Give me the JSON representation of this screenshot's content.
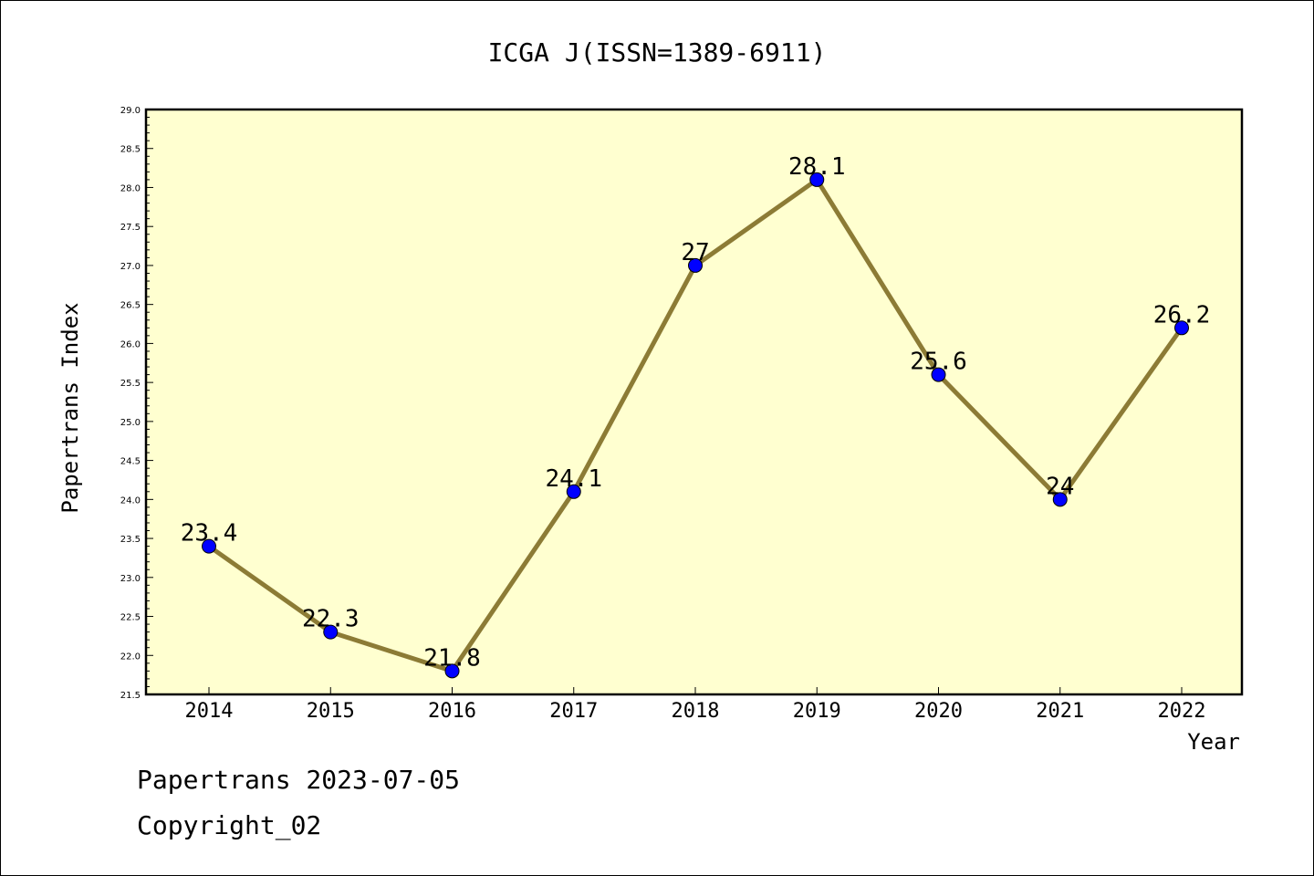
{
  "chart_data": {
    "type": "line",
    "title": "ICGA J(ISSN=1389-6911)",
    "xlabel": "Year",
    "ylabel": "Papertrans Index",
    "x": [
      "2014",
      "2015",
      "2016",
      "2017",
      "2018",
      "2019",
      "2020",
      "2021",
      "2022"
    ],
    "values": [
      23.4,
      22.3,
      21.8,
      24.1,
      27.0,
      28.1,
      25.6,
      24.0,
      26.2
    ],
    "data_labels": [
      "23.4",
      "22.3",
      "21.8",
      "24.1",
      "27",
      "28.1",
      "25.6",
      "24",
      "26.2"
    ],
    "ylim": [
      21.5,
      29.0
    ],
    "yticks": [
      "21.5",
      "22.0",
      "22.5",
      "23.0",
      "23.5",
      "24.0",
      "24.5",
      "25.0",
      "25.5",
      "26.0",
      "26.5",
      "27.0",
      "27.5",
      "28.0",
      "28.5",
      "29.0"
    ],
    "grid": false,
    "legend": "none",
    "colors": {
      "plot_background": "#ffffd0",
      "line": "#8c7b35",
      "marker": "#0000ff"
    }
  },
  "footer": {
    "line1": "Papertrans 2023-07-05",
    "line2": "Copyright_02"
  }
}
